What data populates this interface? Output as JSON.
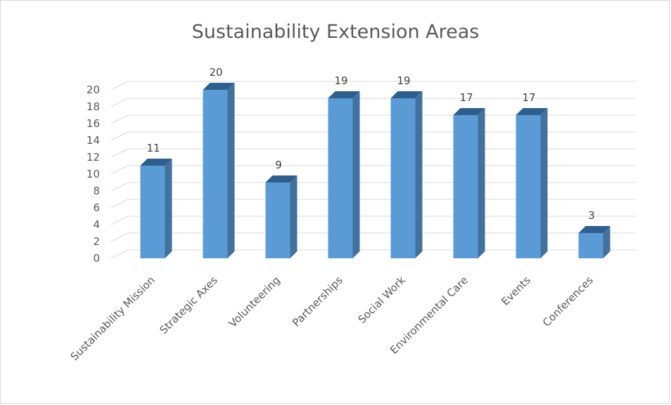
{
  "chart_data": {
    "type": "bar",
    "title": "Sustainability Extension Areas",
    "categories": [
      "Sustainability Mission",
      "Strategic Axes",
      "Volunteering",
      "Partnerships",
      "Social Work",
      "Environmental Care",
      "Events",
      "Conferences"
    ],
    "values": [
      11,
      20,
      9,
      19,
      19,
      17,
      17,
      3
    ],
    "ylim": [
      0,
      20
    ],
    "yticks": [
      0,
      2,
      4,
      6,
      8,
      10,
      12,
      14,
      16,
      18,
      20
    ],
    "grid": true,
    "legend": "none",
    "data_labels": true,
    "bar_color": "#5b9bd5"
  }
}
